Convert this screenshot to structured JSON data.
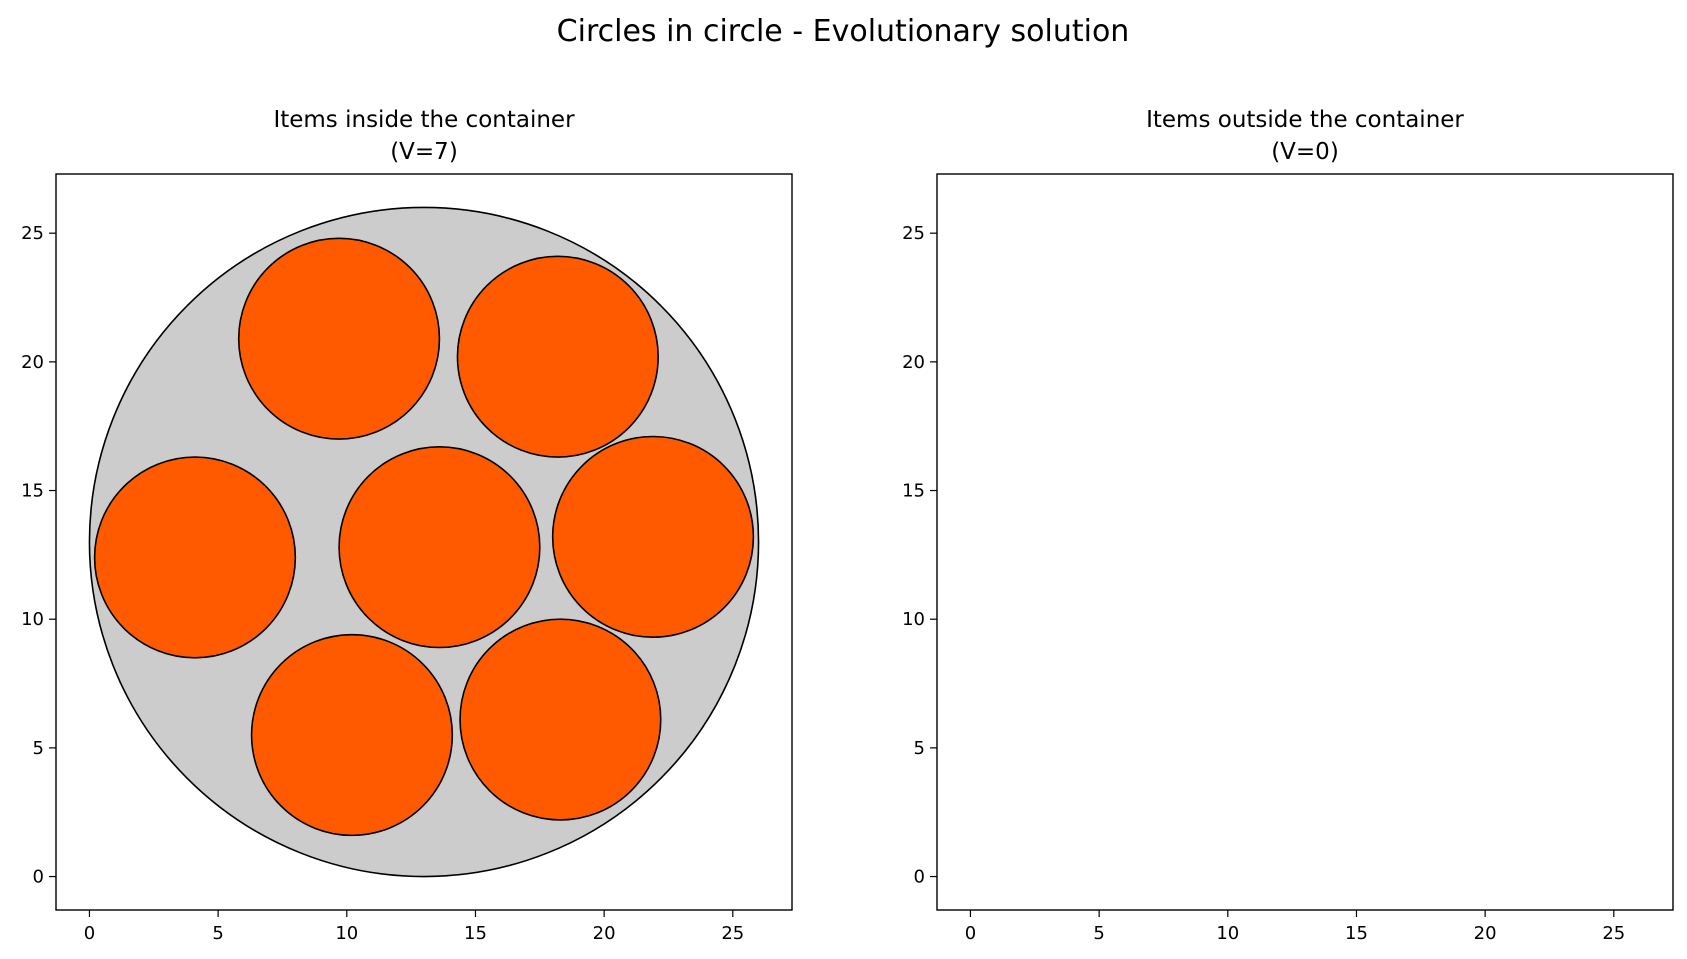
{
  "figure": {
    "title": "Circles in circle - Evolutionary solution"
  },
  "chart_data": [
    {
      "type": "scatter",
      "title_line1": "Items inside the container",
      "title_line2": "(V=7)",
      "xlim": [
        -1.3,
        27.3
      ],
      "ylim": [
        -1.3,
        27.3
      ],
      "xticks": [
        0,
        5,
        10,
        15,
        20,
        25
      ],
      "yticks": [
        0,
        5,
        10,
        15,
        20,
        25
      ],
      "grid": false,
      "container": {
        "cx": 13,
        "cy": 13,
        "r": 13,
        "color": "#cccccc"
      },
      "items": [
        {
          "cx": 9.7,
          "cy": 20.9,
          "r": 3.9
        },
        {
          "cx": 18.2,
          "cy": 20.2,
          "r": 3.9
        },
        {
          "cx": 4.1,
          "cy": 12.4,
          "r": 3.9
        },
        {
          "cx": 13.6,
          "cy": 12.8,
          "r": 3.9
        },
        {
          "cx": 21.9,
          "cy": 13.2,
          "r": 3.9
        },
        {
          "cx": 10.2,
          "cy": 5.5,
          "r": 3.9
        },
        {
          "cx": 18.3,
          "cy": 6.1,
          "r": 3.9
        }
      ],
      "item_color": "#ff5a00",
      "edge_color": "#000000"
    },
    {
      "type": "scatter",
      "title_line1": "Items outside the container",
      "title_line2": "(V=0)",
      "xlim": [
        -1.3,
        27.3
      ],
      "ylim": [
        -1.3,
        27.3
      ],
      "xticks": [
        0,
        5,
        10,
        15,
        20,
        25
      ],
      "yticks": [
        0,
        5,
        10,
        15,
        20,
        25
      ],
      "grid": false,
      "items": []
    }
  ]
}
